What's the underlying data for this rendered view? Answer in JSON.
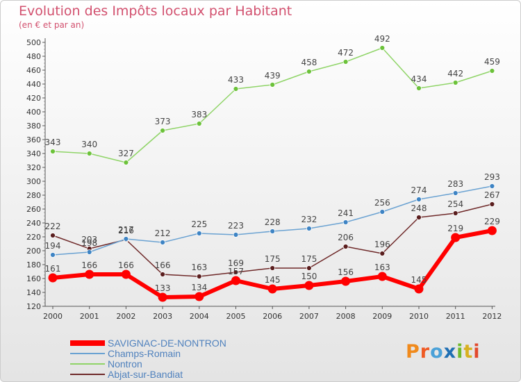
{
  "title": "Evolution des Impôts locaux par Habitant",
  "subtitle": "(en € et par an)",
  "logo": {
    "text": "Proxiti",
    "letter_colors": [
      "#f08a1c",
      "#ef5a24",
      "#4aa1d8",
      "#1f6fb3",
      "#6fba2c",
      "#d8b020",
      "#e2492d"
    ]
  },
  "chart_data": {
    "type": "line",
    "title": "Evolution des Impôts locaux par Habitant",
    "subtitle": "(en € et par an)",
    "xlabel": "",
    "ylabel": "",
    "x": [
      "2000",
      "2001",
      "2002",
      "2003",
      "2004",
      "2005",
      "2006",
      "2007",
      "2008",
      "2009",
      "2010",
      "2011",
      "2012"
    ],
    "ylim": [
      120,
      500
    ],
    "yticks": [
      120,
      140,
      160,
      180,
      200,
      220,
      240,
      260,
      280,
      300,
      320,
      340,
      360,
      380,
      400,
      420,
      440,
      460,
      480,
      500
    ],
    "grid": false,
    "legend_position": "bottom-left",
    "series": [
      {
        "name": "Nontron",
        "color": "#8fd467",
        "marker": "#6cc23a",
        "width": 1.5,
        "radius": 3.5,
        "values": [
          343,
          340,
          327,
          373,
          383,
          433,
          439,
          458,
          472,
          492,
          434,
          442,
          459
        ]
      },
      {
        "name": "Abjat-sur-Bandiat",
        "color": "#6e2828",
        "marker": "#5a1e1e",
        "width": 1.5,
        "radius": 3.5,
        "values": [
          222,
          203,
          216,
          166,
          163,
          169,
          175,
          175,
          206,
          196,
          248,
          254,
          267
        ]
      },
      {
        "name": "Champs-Romain",
        "color": "#6aa2d2",
        "marker": "#3e84c4",
        "width": 1.5,
        "radius": 3.5,
        "values": [
          194,
          198,
          217,
          212,
          225,
          223,
          228,
          232,
          241,
          256,
          274,
          283,
          293
        ]
      },
      {
        "name": "SAVIGNAC-DE-NONTRON",
        "color": "#ff0000",
        "marker": "#ff0000",
        "width": 6,
        "radius": 6.5,
        "values": [
          161,
          166,
          166,
          133,
          134,
          157,
          145,
          150,
          156,
          163,
          145,
          219,
          229
        ]
      }
    ],
    "data_labels": [
      {
        "x": "2000",
        "y": 343,
        "text": "343"
      },
      {
        "x": "2001",
        "y": 340,
        "text": "340"
      },
      {
        "x": "2002",
        "y": 327,
        "text": "327"
      },
      {
        "x": "2003",
        "y": 373,
        "text": "373"
      },
      {
        "x": "2004",
        "y": 383,
        "text": "383"
      },
      {
        "x": "2005",
        "y": 433,
        "text": "433"
      },
      {
        "x": "2006",
        "y": 439,
        "text": "439"
      },
      {
        "x": "2007",
        "y": 458,
        "text": "458"
      },
      {
        "x": "2008",
        "y": 472,
        "text": "472"
      },
      {
        "x": "2009",
        "y": 492,
        "text": "492"
      },
      {
        "x": "2010",
        "y": 434,
        "text": "434"
      },
      {
        "x": "2011",
        "y": 442,
        "text": "442"
      },
      {
        "x": "2012",
        "y": 459,
        "text": "459"
      },
      {
        "x": "2000",
        "y": 222,
        "text": "222"
      },
      {
        "x": "2001",
        "y": 203,
        "text": "203"
      },
      {
        "x": "2002",
        "y": 216,
        "text": "216"
      },
      {
        "x": "2003",
        "y": 166,
        "text": "166"
      },
      {
        "x": "2004",
        "y": 163,
        "text": "163"
      },
      {
        "x": "2005",
        "y": 169,
        "text": "169"
      },
      {
        "x": "2006",
        "y": 175,
        "text": "175"
      },
      {
        "x": "2007",
        "y": 175,
        "text": "175"
      },
      {
        "x": "2008",
        "y": 206,
        "text": "206"
      },
      {
        "x": "2009",
        "y": 196,
        "text": "196"
      },
      {
        "x": "2010",
        "y": 248,
        "text": "248"
      },
      {
        "x": "2011",
        "y": 254,
        "text": "254"
      },
      {
        "x": "2012",
        "y": 267,
        "text": "267"
      },
      {
        "x": "2000",
        "y": 194,
        "text": "194"
      },
      {
        "x": "2001",
        "y": 198,
        "text": "198"
      },
      {
        "x": "2002",
        "y": 217,
        "text": "217"
      },
      {
        "x": "2003",
        "y": 212,
        "text": "212"
      },
      {
        "x": "2004",
        "y": 225,
        "text": "225"
      },
      {
        "x": "2005",
        "y": 223,
        "text": "223"
      },
      {
        "x": "2006",
        "y": 228,
        "text": "228"
      },
      {
        "x": "2007",
        "y": 232,
        "text": "232"
      },
      {
        "x": "2008",
        "y": 241,
        "text": "241"
      },
      {
        "x": "2009",
        "y": 256,
        "text": "256"
      },
      {
        "x": "2010",
        "y": 274,
        "text": "274"
      },
      {
        "x": "2011",
        "y": 283,
        "text": "283"
      },
      {
        "x": "2012",
        "y": 293,
        "text": "293"
      },
      {
        "x": "2000",
        "y": 161,
        "text": "161"
      },
      {
        "x": "2001",
        "y": 166,
        "text": "166"
      },
      {
        "x": "2002",
        "y": 166,
        "text": "166"
      },
      {
        "x": "2003",
        "y": 133,
        "text": "133"
      },
      {
        "x": "2004",
        "y": 134,
        "text": "134"
      },
      {
        "x": "2005",
        "y": 157,
        "text": "157"
      },
      {
        "x": "2006",
        "y": 145,
        "text": "145"
      },
      {
        "x": "2007",
        "y": 150,
        "text": "150"
      },
      {
        "x": "2008",
        "y": 156,
        "text": "156"
      },
      {
        "x": "2009",
        "y": 163,
        "text": "163"
      },
      {
        "x": "2010",
        "y": 145,
        "text": "145"
      },
      {
        "x": "2011",
        "y": 219,
        "text": "219"
      },
      {
        "x": "2012",
        "y": 229,
        "text": "229"
      }
    ]
  }
}
